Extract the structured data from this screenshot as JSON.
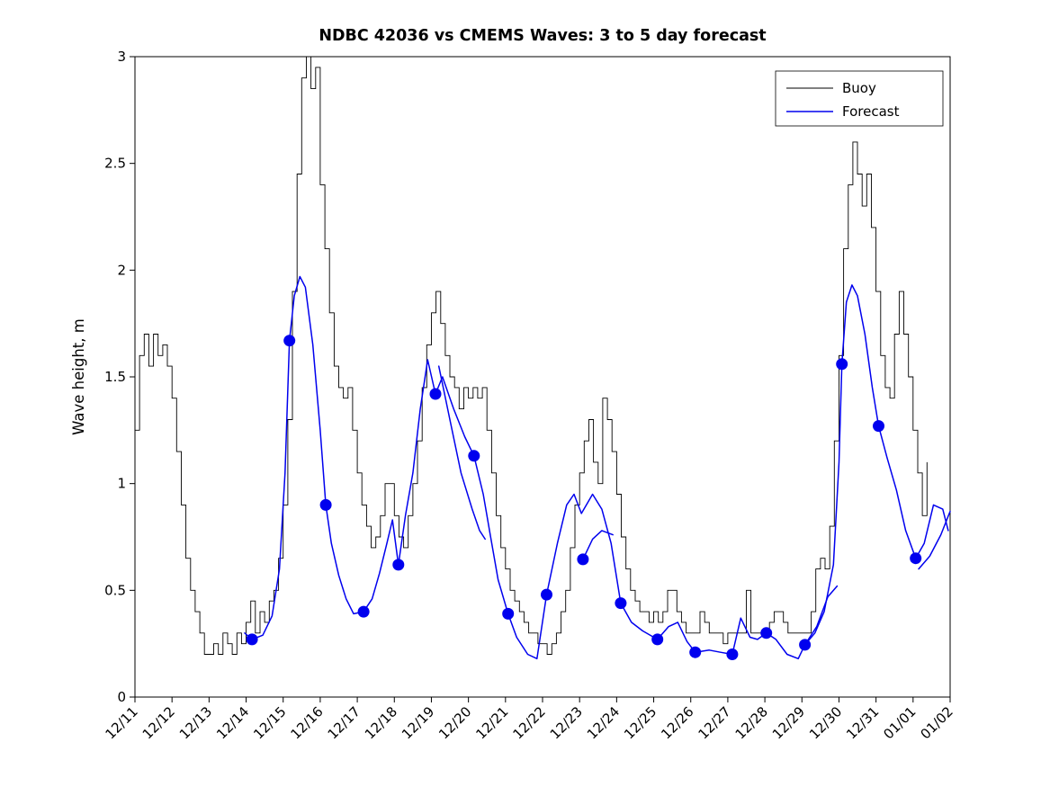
{
  "figure": {
    "background": "#ffffff"
  },
  "chart_data": {
    "type": "line",
    "title": "NDBC 42036 vs CMEMS Waves: 3 to 5 day forecast",
    "xlabel": "",
    "ylabel": "Wave height, m",
    "grid": false,
    "x_axis": {
      "range_days": [
        0,
        22
      ],
      "tick_rotation_deg": 45,
      "tick_labels": [
        "12/11",
        "12/12",
        "12/13",
        "12/14",
        "12/15",
        "12/16",
        "12/17",
        "12/18",
        "12/19",
        "12/20",
        "12/21",
        "12/22",
        "12/23",
        "12/24",
        "12/25",
        "12/26",
        "12/27",
        "12/28",
        "12/29",
        "12/30",
        "12/31",
        "01/01",
        "01/02"
      ]
    },
    "y_axis": {
      "range": [
        0,
        3
      ],
      "ticks": [
        0,
        0.5,
        1,
        1.5,
        2,
        2.5,
        3
      ]
    },
    "legend": {
      "position": "top-right",
      "entries": [
        {
          "label": "Buoy",
          "color": "#000000"
        },
        {
          "label": "Forecast",
          "color": "#0000ee"
        }
      ]
    },
    "series": [
      {
        "name": "Buoy",
        "type": "step",
        "color": "#000000",
        "units": "m",
        "t_start": 0,
        "dt": 0.125,
        "values": [
          1.25,
          1.6,
          1.7,
          1.55,
          1.7,
          1.6,
          1.65,
          1.55,
          1.4,
          1.15,
          0.9,
          0.65,
          0.5,
          0.4,
          0.3,
          0.2,
          0.2,
          0.25,
          0.2,
          0.3,
          0.25,
          0.2,
          0.3,
          0.25,
          0.35,
          0.45,
          0.3,
          0.4,
          0.35,
          0.45,
          0.5,
          0.65,
          0.9,
          1.3,
          1.9,
          2.45,
          2.9,
          3.0,
          2.85,
          2.95,
          2.4,
          2.1,
          1.8,
          1.55,
          1.45,
          1.4,
          1.45,
          1.25,
          1.05,
          0.9,
          0.8,
          0.7,
          0.75,
          0.85,
          1.0,
          1.0,
          0.85,
          0.75,
          0.7,
          0.85,
          1.0,
          1.2,
          1.45,
          1.65,
          1.8,
          1.9,
          1.75,
          1.6,
          1.5,
          1.45,
          1.35,
          1.45,
          1.4,
          1.45,
          1.4,
          1.45,
          1.25,
          1.05,
          0.85,
          0.7,
          0.6,
          0.5,
          0.45,
          0.4,
          0.35,
          0.3,
          0.3,
          0.25,
          0.25,
          0.2,
          0.25,
          0.3,
          0.4,
          0.5,
          0.7,
          0.9,
          1.05,
          1.2,
          1.3,
          1.1,
          1.0,
          1.4,
          1.3,
          1.15,
          0.95,
          0.75,
          0.6,
          0.5,
          0.45,
          0.4,
          0.4,
          0.35,
          0.4,
          0.35,
          0.4,
          0.5,
          0.5,
          0.4,
          0.35,
          0.3,
          0.3,
          0.3,
          0.4,
          0.35,
          0.3,
          0.3,
          0.3,
          0.25,
          0.3,
          0.3,
          0.3,
          0.3,
          0.5,
          0.3,
          0.3,
          0.3,
          0.3,
          0.35,
          0.4,
          0.4,
          0.35,
          0.3,
          0.3,
          0.3,
          0.3,
          0.3,
          0.4,
          0.6,
          0.65,
          0.6,
          0.8,
          1.2,
          1.6,
          2.1,
          2.4,
          2.6,
          2.45,
          2.3,
          2.45,
          2.2,
          1.9,
          1.6,
          1.45,
          1.4,
          1.7,
          1.9,
          1.7,
          1.5,
          1.25,
          1.05,
          0.85,
          1.1
        ]
      },
      {
        "name": "Forecast",
        "type": "line",
        "color": "#0000ee",
        "units": "m",
        "segments": [
          {
            "t": [
              2.96,
              3.16,
              3.45,
              3.7,
              3.9,
              4.05,
              4.17,
              4.3,
              4.45,
              4.6,
              4.8,
              5.0,
              5.15,
              5.3,
              5.5,
              5.7,
              5.9,
              6.17,
              6.4,
              6.6,
              6.8,
              6.95,
              7.11,
              7.3,
              7.5,
              7.7,
              7.9,
              8.11,
              8.3,
              8.6,
              8.9,
              9.15,
              9.4,
              9.6,
              9.8,
              10.07,
              10.3,
              10.6,
              10.85,
              11.11,
              11.4,
              11.65,
              11.85,
              12.05,
              12.35,
              12.6,
              12.85,
              13.11,
              13.4,
              13.7,
              14.1,
              14.4,
              14.65,
              14.9,
              15.12,
              15.5,
              15.8,
              16.12,
              16.35,
              16.6,
              16.8,
              17.04,
              17.3,
              17.6,
              17.9,
              18.08,
              18.35,
              18.6,
              18.85,
              19.0,
              19.08,
              19.2,
              19.35,
              19.5,
              19.7,
              19.9,
              20.07,
              20.3,
              20.55,
              20.8,
              21.07
            ],
            "y": [
              0.3,
              0.27,
              0.29,
              0.38,
              0.6,
              1.05,
              1.67,
              1.88,
              1.97,
              1.92,
              1.65,
              1.25,
              0.9,
              0.72,
              0.57,
              0.46,
              0.39,
              0.4,
              0.46,
              0.58,
              0.72,
              0.83,
              0.62,
              0.85,
              1.05,
              1.35,
              1.58,
              1.42,
              1.5,
              1.35,
              1.22,
              1.13,
              0.95,
              0.75,
              0.55,
              0.39,
              0.28,
              0.2,
              0.18,
              0.48,
              0.72,
              0.9,
              0.95,
              0.86,
              0.95,
              0.88,
              0.72,
              0.44,
              0.35,
              0.31,
              0.27,
              0.33,
              0.35,
              0.26,
              0.21,
              0.22,
              0.21,
              0.2,
              0.37,
              0.28,
              0.27,
              0.3,
              0.27,
              0.2,
              0.18,
              0.245,
              0.3,
              0.4,
              0.62,
              1.1,
              1.56,
              1.85,
              1.93,
              1.88,
              1.7,
              1.45,
              1.27,
              1.12,
              0.97,
              0.78,
              0.65
            ]
          },
          {
            "t": [
              8.2,
              8.5,
              8.8,
              9.1,
              9.3,
              9.45
            ],
            "y": [
              1.55,
              1.3,
              1.05,
              0.88,
              0.78,
              0.74
            ]
          },
          {
            "t": [
              12.09,
              12.35,
              12.6,
              12.9
            ],
            "y": [
              0.645,
              0.74,
              0.78,
              0.76
            ]
          },
          {
            "t": [
              18.08,
              18.4,
              18.7,
              18.95
            ],
            "y": [
              0.245,
              0.33,
              0.47,
              0.52
            ]
          },
          {
            "t": [
              21.07,
              21.3,
              21.55,
              21.8,
              21.95
            ],
            "y": [
              0.65,
              0.72,
              0.9,
              0.88,
              0.78
            ]
          },
          {
            "t": [
              21.15,
              21.45,
              21.75,
              22.0
            ],
            "y": [
              0.6,
              0.66,
              0.76,
              0.87
            ]
          }
        ]
      }
    ],
    "markers": {
      "name": "forecast-run-start",
      "color": "#0000ee",
      "t": [
        3.16,
        4.17,
        5.15,
        6.17,
        7.11,
        8.11,
        9.15,
        10.07,
        11.11,
        12.09,
        13.11,
        14.1,
        15.12,
        16.12,
        17.04,
        18.08,
        19.08,
        20.07,
        21.07
      ],
      "y": [
        0.27,
        1.67,
        0.9,
        0.4,
        0.62,
        1.42,
        1.13,
        0.39,
        0.48,
        0.645,
        0.44,
        0.27,
        0.21,
        0.2,
        0.3,
        0.245,
        1.56,
        1.27,
        0.65
      ]
    }
  }
}
